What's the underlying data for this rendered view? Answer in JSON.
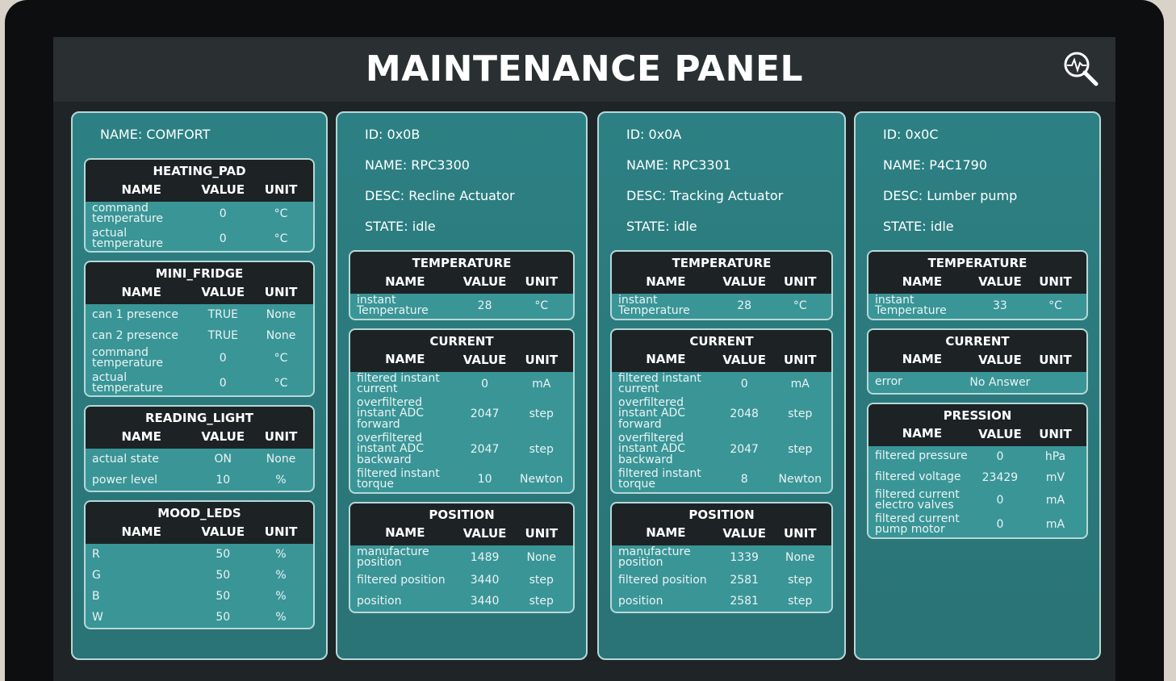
{
  "title": "MAINTENANCE PANEL",
  "columns": [
    {
      "lines": [
        "NAME: COMFORT"
      ],
      "tables": [
        {
          "title": "HEATING_PAD",
          "header": [
            "NAME",
            "VALUE",
            "UNIT"
          ],
          "rows": [
            [
              "command temperature",
              "0",
              "°C"
            ],
            [
              "actual temperature",
              "0",
              "°C"
            ]
          ]
        },
        {
          "title": "MINI_FRIDGE",
          "header": [
            "NAME",
            "VALUE",
            "UNIT"
          ],
          "rows": [
            [
              "can 1 presence",
              "TRUE",
              "None"
            ],
            [
              "can 2 presence",
              "TRUE",
              "None"
            ],
            [
              "command temperature",
              "0",
              "°C"
            ],
            [
              "actual temperature",
              "0",
              "°C"
            ]
          ]
        },
        {
          "title": "READING_LIGHT",
          "header": [
            "NAME",
            "VALUE",
            "UNIT"
          ],
          "rows": [
            [
              "actual state",
              "ON",
              "None"
            ],
            [
              "power level",
              "10",
              "%"
            ]
          ]
        },
        {
          "title": "MOOD_LEDS",
          "header": [
            "NAME",
            "VALUE",
            "UNIT"
          ],
          "rows": [
            [
              "R",
              "50",
              "%"
            ],
            [
              "G",
              "50",
              "%"
            ],
            [
              "B",
              "50",
              "%"
            ],
            [
              "W",
              "50",
              "%"
            ]
          ]
        }
      ]
    },
    {
      "lines": [
        "ID: 0x0B",
        "NAME: RPC3300",
        "DESC: Recline Actuator",
        "STATE: idle"
      ],
      "tables": [
        {
          "title": "TEMPERATURE",
          "header": [
            "NAME",
            "VALUE",
            "UNIT"
          ],
          "rows": [
            [
              "instant Temperature",
              "28",
              "°C"
            ]
          ]
        },
        {
          "title": "CURRENT",
          "header": [
            "NAME",
            "VALUE",
            "UNIT"
          ],
          "rows": [
            [
              "filtered instant current",
              "0",
              "mA"
            ],
            [
              "overfiltered instant ADC forward",
              "2047",
              "step"
            ],
            [
              "overfiltered instant ADC backward",
              "2047",
              "step"
            ],
            [
              "filtered instant torque",
              "10",
              "Newton"
            ]
          ]
        },
        {
          "title": "POSITION",
          "header": [
            "NAME",
            "VALUE",
            "UNIT"
          ],
          "rows": [
            [
              "manufacture position",
              "1489",
              "None"
            ],
            [
              "filtered position",
              "3440",
              "step"
            ],
            [
              "position",
              "3440",
              "step"
            ]
          ]
        }
      ]
    },
    {
      "lines": [
        "ID: 0x0A",
        "NAME: RPC3301",
        "DESC: Tracking Actuator",
        "STATE: idle"
      ],
      "tables": [
        {
          "title": "TEMPERATURE",
          "header": [
            "NAME",
            "VALUE",
            "UNIT"
          ],
          "rows": [
            [
              "instant Temperature",
              "28",
              "°C"
            ]
          ]
        },
        {
          "title": "CURRENT",
          "header": [
            "NAME",
            "VALUE",
            "UNIT"
          ],
          "rows": [
            [
              "filtered instant current",
              "0",
              "mA"
            ],
            [
              "overfiltered instant ADC forward",
              "2048",
              "step"
            ],
            [
              "overfiltered instant ADC backward",
              "2047",
              "step"
            ],
            [
              "filtered instant torque",
              "8",
              "Newton"
            ]
          ]
        },
        {
          "title": "POSITION",
          "header": [
            "NAME",
            "VALUE",
            "UNIT"
          ],
          "rows": [
            [
              "manufacture position",
              "1339",
              "None"
            ],
            [
              "filtered position",
              "2581",
              "step"
            ],
            [
              "position",
              "2581",
              "step"
            ]
          ]
        }
      ]
    },
    {
      "lines": [
        "ID: 0x0C",
        "NAME: P4C1790",
        "DESC: Lumber pump",
        "STATE: idle"
      ],
      "tables": [
        {
          "title": "TEMPERATURE",
          "header": [
            "NAME",
            "VALUE",
            "UNIT"
          ],
          "rows": [
            [
              "instant Temperature",
              "33",
              "°C"
            ]
          ]
        },
        {
          "title": "CURRENT",
          "header": [
            "NAME",
            "VALUE",
            "UNIT"
          ],
          "rows": [
            [
              "error",
              "No Answer"
            ]
          ]
        },
        {
          "title": "PRESSION",
          "header": [
            "NAME",
            "VALUE",
            "UNIT"
          ],
          "rows": [
            [
              "filtered pressure",
              "0",
              "hPa"
            ],
            [
              "filtered voltage",
              "23429",
              "mV"
            ],
            [
              "filtered current electro valves",
              "0",
              "mA"
            ],
            [
              "filtered current pump motor",
              "0",
              "mA"
            ]
          ]
        }
      ]
    }
  ]
}
